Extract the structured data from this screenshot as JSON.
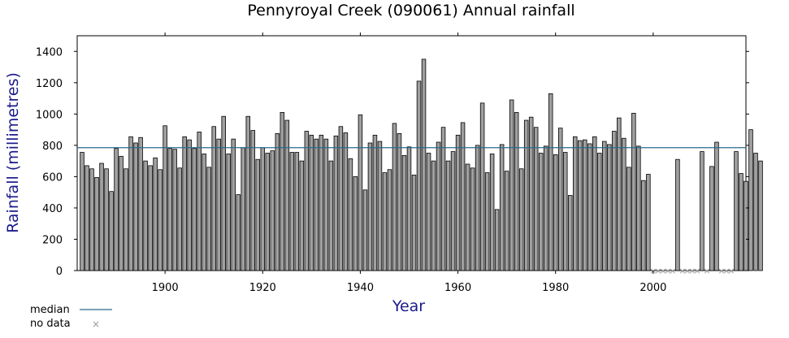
{
  "chart_data": {
    "type": "bar",
    "title": "Pennyroyal Creek (090061) Annual rainfall",
    "xlabel": "Year",
    "ylabel": "Rainfall (millimetres)",
    "xlim": [
      1882,
      2019
    ],
    "ylim": [
      0,
      1500
    ],
    "x_ticks": [
      1900,
      1920,
      1940,
      1960,
      1980,
      2000
    ],
    "y_ticks": [
      0,
      200,
      400,
      600,
      800,
      1000,
      1200,
      1400
    ],
    "grid": false,
    "median": 785,
    "start_year": 1883,
    "values": [
      755,
      670,
      650,
      595,
      685,
      650,
      505,
      780,
      730,
      650,
      855,
      815,
      850,
      700,
      670,
      720,
      645,
      925,
      780,
      775,
      655,
      855,
      835,
      780,
      885,
      745,
      660,
      920,
      840,
      985,
      745,
      840,
      485,
      785,
      985,
      895,
      710,
      785,
      750,
      765,
      875,
      1010,
      960,
      755,
      755,
      700,
      890,
      865,
      840,
      865,
      840,
      700,
      860,
      920,
      880,
      715,
      600,
      995,
      515,
      815,
      865,
      825,
      625,
      645,
      940,
      875,
      735,
      790,
      610,
      1210,
      1350,
      750,
      700,
      820,
      915,
      700,
      760,
      865,
      945,
      680,
      655,
      800,
      1070,
      625,
      745,
      390,
      805,
      635,
      1090,
      1010,
      650,
      960,
      980,
      915,
      750,
      795,
      1130,
      740,
      910,
      755,
      480,
      855,
      830,
      835,
      810,
      855,
      750,
      825,
      805,
      890,
      975,
      845,
      660,
      1005,
      795,
      575,
      615,
      null,
      null,
      null,
      null,
      null,
      710,
      null,
      null,
      null,
      null,
      760,
      null,
      665,
      820,
      null,
      null,
      null,
      760,
      620,
      570,
      900,
      750,
      700
    ],
    "legend": [
      {
        "label": "median",
        "color": "#2a6a8c"
      },
      {
        "label": "no data",
        "color": "#999999"
      }
    ],
    "colors": {
      "bar_fill": "#a0a0a0",
      "bar_stroke": "#000000",
      "median_line": "#2a6a8c",
      "nodata": "#999999",
      "axis_text": "#1a1a8c"
    }
  }
}
